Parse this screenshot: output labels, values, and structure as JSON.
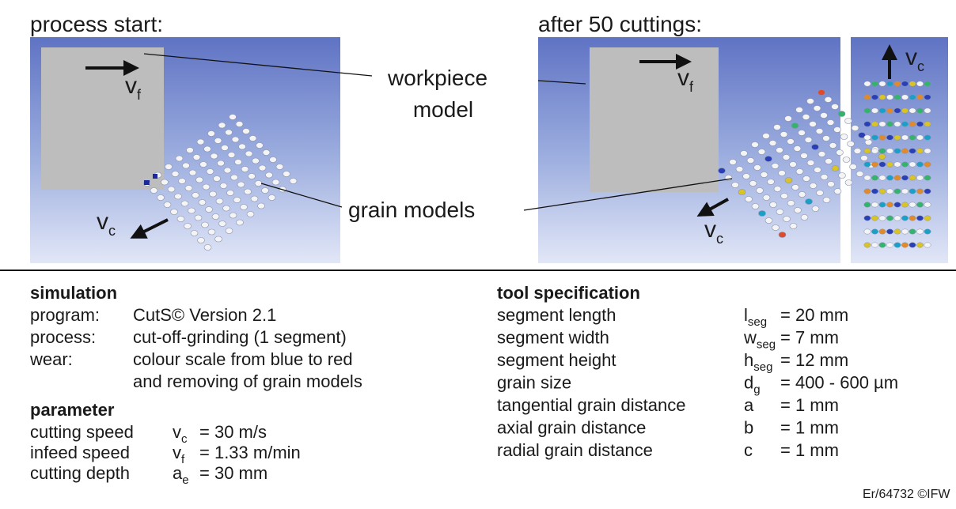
{
  "figure": {
    "panels": [
      {
        "title": "process start:"
      },
      {
        "title": "after 50 cuttings:"
      }
    ],
    "callouts": {
      "workpiece": [
        "workpiece",
        "model"
      ],
      "grains": "grain models"
    },
    "velocities": {
      "feed": {
        "base": "v",
        "sub": "f"
      },
      "cutting": {
        "base": "v",
        "sub": "c"
      }
    }
  },
  "simulation": {
    "heading": "simulation",
    "rows": [
      {
        "label": "program:",
        "value": [
          "CutS© Version 2.1"
        ]
      },
      {
        "label": "process:",
        "value": [
          "cut-off-grinding (1 segment)"
        ]
      },
      {
        "label": "wear:",
        "value": [
          "colour scale from blue to red",
          "and removing of grain models"
        ]
      }
    ]
  },
  "parameter": {
    "heading": "parameter",
    "rows": [
      {
        "label": "cutting speed",
        "symbol": {
          "base": "v",
          "sub": "c"
        },
        "value": "= 30 m/s"
      },
      {
        "label": "infeed speed",
        "symbol": {
          "base": "v",
          "sub": "f"
        },
        "value": "= 1.33 m/min"
      },
      {
        "label": "cutting depth",
        "symbol": {
          "base": "a",
          "sub": "e"
        },
        "value": "= 30 mm"
      }
    ]
  },
  "tool_specification": {
    "heading": "tool specification",
    "rows": [
      {
        "label": "segment length",
        "symbol": {
          "base": "l",
          "sub": "seg"
        },
        "value": "= 20 mm"
      },
      {
        "label": "segment width",
        "symbol": {
          "base": "w",
          "sub": "seg"
        },
        "value": "= 7 mm"
      },
      {
        "label": "segment height",
        "symbol": {
          "base": "h",
          "sub": "seg"
        },
        "value": "= 12 mm"
      },
      {
        "label": "grain size",
        "symbol": {
          "base": "d",
          "sub": "g"
        },
        "value": "= 400 - 600 µm"
      },
      {
        "label": "tangential grain distance",
        "symbol": {
          "base": "a"
        },
        "value": "= 1 mm"
      },
      {
        "label": "axial grain distance",
        "symbol": {
          "base": "b"
        },
        "value": "= 1 mm"
      },
      {
        "label": "radial grain distance",
        "symbol": {
          "base": "c"
        },
        "value": "= 1 mm"
      }
    ]
  },
  "footer": "Er/64732 ©IFW"
}
